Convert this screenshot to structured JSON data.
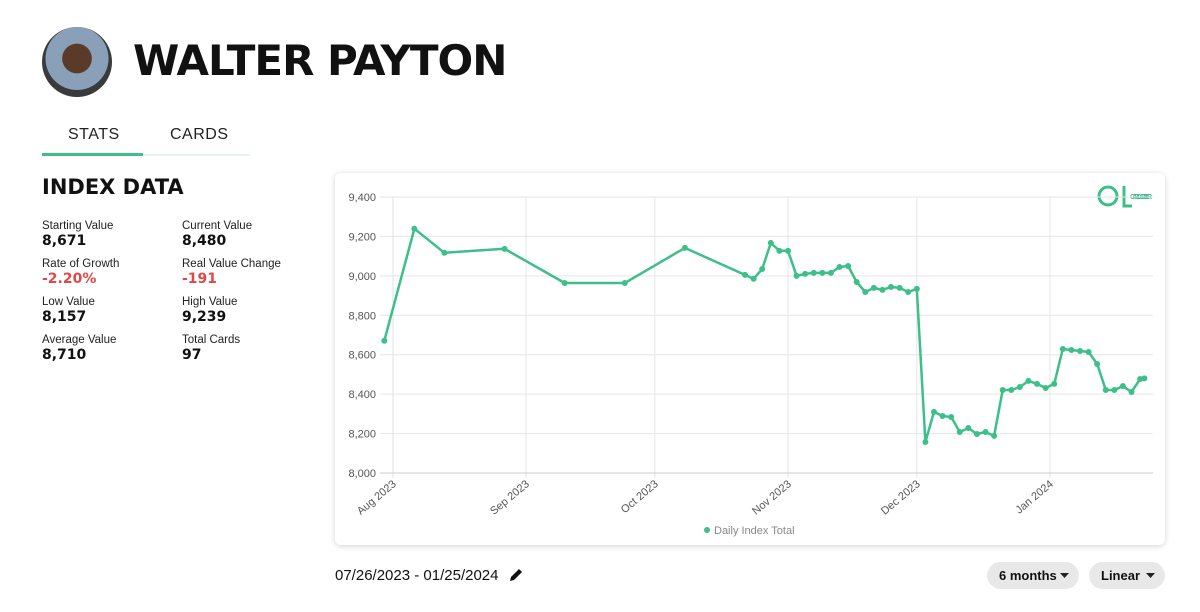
{
  "header": {
    "name": "WALTER PAYTON"
  },
  "tabs": [
    "STATS",
    "CARDS"
  ],
  "index_data": {
    "title": "INDEX DATA",
    "stats": [
      {
        "label": "Starting Value",
        "value": "8,671"
      },
      {
        "label": "Current Value",
        "value": "8,480"
      },
      {
        "label": "Rate of Growth",
        "value": "-2.20%"
      },
      {
        "label": "Real Value Change",
        "value": "-191"
      },
      {
        "label": "Low Value",
        "value": "8,157"
      },
      {
        "label": "High Value",
        "value": "9,239"
      },
      {
        "label": "Average Value",
        "value": "8,710"
      },
      {
        "label": "Total Cards",
        "value": "97"
      }
    ]
  },
  "brand": "CARD LADDER",
  "chart_data": {
    "type": "line",
    "x": [
      "2023-07-30",
      "2023-08-06",
      "2023-08-13",
      "2023-08-27",
      "2023-09-10",
      "2023-09-24",
      "2023-10-08",
      "2023-10-22",
      "2023-10-24",
      "2023-10-26",
      "2023-10-28",
      "2023-10-30",
      "2023-11-01",
      "2023-11-03",
      "2023-11-05",
      "2023-11-07",
      "2023-11-09",
      "2023-11-11",
      "2023-11-13",
      "2023-11-15",
      "2023-11-17",
      "2023-11-19",
      "2023-11-21",
      "2023-11-23",
      "2023-11-25",
      "2023-11-27",
      "2023-11-29",
      "2023-12-01",
      "2023-12-03",
      "2023-12-05",
      "2023-12-07",
      "2023-12-09",
      "2023-12-11",
      "2023-12-13",
      "2023-12-15",
      "2023-12-17",
      "2023-12-19",
      "2023-12-21",
      "2023-12-23",
      "2023-12-25",
      "2023-12-27",
      "2023-12-29",
      "2023-12-31",
      "2024-01-02",
      "2024-01-04",
      "2024-01-06",
      "2024-01-08",
      "2024-01-10",
      "2024-01-12",
      "2024-01-14",
      "2024-01-16",
      "2024-01-18",
      "2024-01-20",
      "2024-01-22",
      "2024-01-23"
    ],
    "series": [
      {
        "name": "Daily Index Total",
        "color": "#3dbf8a",
        "values": [
          8671,
          9239,
          9117,
          9137,
          8964,
          8964,
          9142,
          9005,
          8985,
          9035,
          9167,
          9127,
          9127,
          9000,
          9010,
          9015,
          9015,
          9015,
          9045,
          9050,
          8969,
          8918,
          8939,
          8929,
          8944,
          8939,
          8918,
          8934,
          8157,
          8310,
          8289,
          8284,
          8208,
          8228,
          8198,
          8208,
          8188,
          8421,
          8421,
          8436,
          8467,
          8452,
          8431,
          8452,
          8629,
          8624,
          8619,
          8614,
          8553,
          8421,
          8421,
          8441,
          8411,
          8477,
          8480
        ]
      }
    ],
    "xlim": [
      "2023-07-29",
      "2024-01-25"
    ],
    "xticks": [
      {
        "value": "2023-08-01",
        "label": "Aug 2023"
      },
      {
        "value": "2023-09-01",
        "label": "Sep 2023"
      },
      {
        "value": "2023-10-01",
        "label": "Oct 2023"
      },
      {
        "value": "2023-11-01",
        "label": "Nov 2023"
      },
      {
        "value": "2023-12-01",
        "label": "Dec 2023"
      },
      {
        "value": "2024-01-01",
        "label": "Jan 2024"
      }
    ],
    "ylim": [
      8000,
      9400
    ],
    "yticks": [
      {
        "value": 8000,
        "label": "8,000"
      },
      {
        "value": 8200,
        "label": "8,200"
      },
      {
        "value": 8400,
        "label": "8,400"
      },
      {
        "value": 8600,
        "label": "8,600"
      },
      {
        "value": 8800,
        "label": "8,800"
      },
      {
        "value": 9000,
        "label": "9,000"
      },
      {
        "value": 9200,
        "label": "9,200"
      },
      {
        "value": 9400,
        "label": "9,400"
      }
    ],
    "grid": true,
    "legend": "bottom"
  },
  "date_range": "07/26/2023 - 01/25/2024",
  "controls": [
    "6 months",
    "Linear"
  ]
}
